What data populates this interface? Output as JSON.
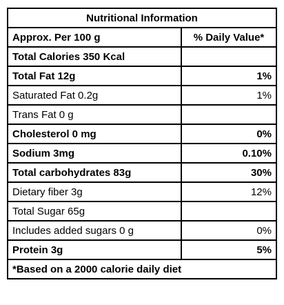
{
  "table": {
    "title": "Nutritional Information",
    "header": {
      "left": "Approx. Per 100 g",
      "right": "% Daily Value*"
    },
    "rows": [
      {
        "name": "Total Calories 350 Kcal",
        "value": "",
        "bold": true
      },
      {
        "name": "Total Fat 12g",
        "value": "1%",
        "bold": true
      },
      {
        "name": "Saturated Fat  0.2g",
        "value": "1%",
        "bold": false
      },
      {
        "name": "Trans Fat 0 g",
        "value": "",
        "bold": false
      },
      {
        "name": "Cholesterol 0 mg",
        "value": "0%",
        "bold": true
      },
      {
        "name": "Sodium 3mg",
        "value": "0.10%",
        "bold": true
      },
      {
        "name": "Total carbohydrates  83g",
        "value": "30%",
        "bold": true
      },
      {
        "name": "Dietary fiber  3g",
        "value": "12%",
        "bold": false
      },
      {
        "name": "Total Sugar 65g",
        "value": "",
        "bold": false
      },
      {
        "name": "Includes added sugars 0 g",
        "value": "0%",
        "bold": false
      },
      {
        "name": "Protein  3g",
        "value": "5%",
        "bold": true
      }
    ],
    "footer": "*Based on a 2000 calorie daily diet"
  }
}
